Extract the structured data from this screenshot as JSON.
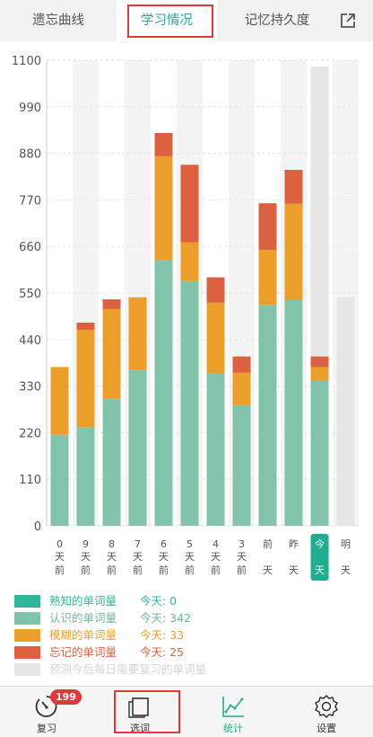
{
  "tabs": [
    {
      "label": "遗忘曲线",
      "active": false
    },
    {
      "label": "学习情况",
      "active": true
    },
    {
      "label": "记忆持久度",
      "active": false
    }
  ],
  "share_icon": "share-external-icon",
  "colors": {
    "accent": "#1fae8e",
    "familiar": "#2fb79a",
    "known": "#82c3ac",
    "fuzzy": "#eb9f2a",
    "forgot": "#dc6141",
    "forecast": "#e6e6e6",
    "highlight_red": "#e0393a"
  },
  "chart_data": {
    "type": "bar",
    "stacked": true,
    "ylim": [
      0,
      1100
    ],
    "yticks": [
      0,
      110,
      220,
      330,
      440,
      550,
      660,
      770,
      880,
      990,
      1100
    ],
    "categories": [
      [
        "0",
        "天",
        "前"
      ],
      [
        "9",
        "天",
        "前"
      ],
      [
        "8",
        "天",
        "前"
      ],
      [
        "7",
        "天",
        "前"
      ],
      [
        "6",
        "天",
        "前"
      ],
      [
        "5",
        "天",
        "前"
      ],
      [
        "4",
        "天",
        "前"
      ],
      [
        "3",
        "天",
        "前"
      ],
      [
        "前",
        "天"
      ],
      [
        "昨",
        "天"
      ],
      [
        "今",
        "天"
      ],
      [
        "明",
        "天"
      ]
    ],
    "highlighted_category_index": 10,
    "series": [
      {
        "name": "熟知的单词量",
        "key": "familiar",
        "values": [
          0,
          0,
          0,
          0,
          0,
          0,
          0,
          0,
          0,
          0,
          0,
          0
        ]
      },
      {
        "name": "认识的单词量",
        "key": "known",
        "values": [
          215,
          233,
          300,
          368,
          628,
          578,
          360,
          285,
          522,
          533,
          342,
          0
        ]
      },
      {
        "name": "模糊的单词量",
        "key": "fuzzy",
        "values": [
          160,
          230,
          212,
          172,
          245,
          92,
          167,
          77,
          130,
          228,
          33,
          0
        ]
      },
      {
        "name": "忘记的单词量",
        "key": "forgot",
        "values": [
          0,
          17,
          23,
          0,
          55,
          183,
          60,
          38,
          110,
          80,
          25,
          0
        ]
      }
    ],
    "forecast": {
      "name": "预测今后每日需要复习的单词量",
      "values": [
        0,
        0,
        0,
        0,
        0,
        0,
        0,
        0,
        0,
        0,
        1085,
        540
      ]
    }
  },
  "legend": [
    {
      "label": "熟知的单词量",
      "value": "今天: 0",
      "key": "familiar"
    },
    {
      "label": "认识的单词量",
      "value": "今天: 342",
      "key": "known"
    },
    {
      "label": "模糊的单词量",
      "value": "今天: 33",
      "key": "fuzzy"
    },
    {
      "label": "忘记的单词量",
      "value": "今天: 25",
      "key": "forgot"
    },
    {
      "label": "预测今后每日需要复习的单词量",
      "value": "",
      "key": "forecast"
    }
  ],
  "bottom_nav": [
    {
      "label": "复习",
      "icon": "review-gauge-icon",
      "badge": "199",
      "active": false
    },
    {
      "label": "选词",
      "icon": "word-select-icon",
      "badge": "",
      "active": false
    },
    {
      "label": "统计",
      "icon": "statistics-chart-icon",
      "badge": "",
      "active": true
    },
    {
      "label": "设置",
      "icon": "settings-gear-icon",
      "badge": "",
      "active": false
    }
  ]
}
